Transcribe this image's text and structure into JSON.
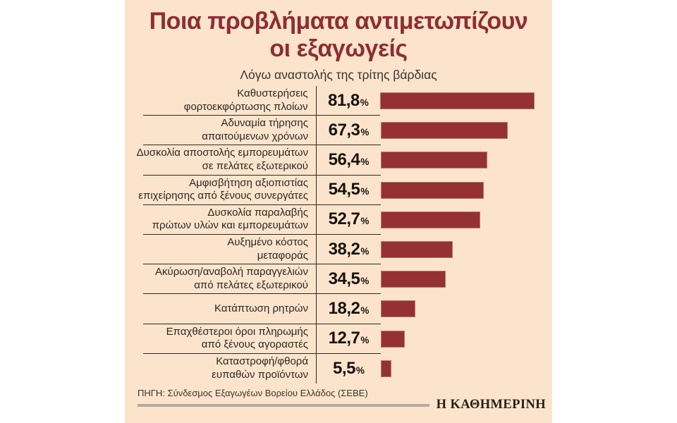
{
  "header": {
    "title_line1": "Ποια προβλήματα αντιμετωπίζουν",
    "title_line2": "οι εξαγωγείς",
    "subtitle": "Λόγω αναστολής της τρίτης βάρδιας"
  },
  "chart_data": {
    "type": "bar",
    "orientation": "horizontal",
    "title": "Ποια προβλήματα αντιμετωπίζουν οι εξαγωγείς",
    "subtitle": "Λόγω αναστολής της τρίτης βάρδιας",
    "unit": "%",
    "xlim": [
      0,
      90
    ],
    "legend": "none",
    "grid": "off",
    "categories": [
      "Καθυστερήσεις φορτοεκφόρτωσης πλοίων",
      "Αδυναμία τήρησης απαιτούμενων χρόνων",
      "Δυσκολία αποστολής εμπορευμάτων σε πελάτες εξωτερικού",
      "Αμφισβήτηση αξιοπιστίας επιχείρησης από ξένους συνεργάτες",
      "Δυσκολία παραλαβής πρώτων υλών και εμπορευμάτων",
      "Αυξημένο κόστος μεταφοράς",
      "Ακύρωση/αναβολή παραγγελιών από πελάτες εξωτερικού",
      "Κατάπτωση ρητρών",
      "Επαχθέστεροι όροι πληρωμής από ξένους αγοραστές",
      "Καταστροφή/φθορά ευπαθών προϊόντων"
    ],
    "category_lines": [
      [
        "Καθυστερήσεις",
        "φορτοεκφόρτωσης πλοίων"
      ],
      [
        "Αδυναμία τήρησης",
        "απαιτούμενων χρόνων"
      ],
      [
        "Δυσκολία αποστολής εμπορευμάτων",
        "σε πελάτες εξωτερικού"
      ],
      [
        "Αμφισβήτηση αξιοπιστίας",
        "επιχείρησης από ξένους συνεργάτες"
      ],
      [
        "Δυσκολία παραλαβής",
        "πρώτων υλών και εμπορευμάτων"
      ],
      [
        "Αυξημένο κόστος",
        "μεταφοράς"
      ],
      [
        "Ακύρωση/αναβολή παραγγελιών",
        "από πελάτες εξωτερικού"
      ],
      [
        "Κατάπτωση ρητρών"
      ],
      [
        "Επαχθέστεροι όροι πληρωμής",
        "από ξένους αγοραστές"
      ],
      [
        "Καταστροφή/φθορά",
        "ευπαθών προϊόντων"
      ]
    ],
    "values": [
      81.8,
      67.3,
      56.4,
      54.5,
      52.7,
      38.2,
      34.5,
      18.2,
      12.7,
      5.5
    ],
    "value_labels": [
      "81,8",
      "67,3",
      "56,4",
      "54,5",
      "52,7",
      "38,2",
      "34,5",
      "18,2",
      "12,7",
      "5,5"
    ],
    "bar_color": "#953134"
  },
  "footer": {
    "source": "ΠΗΓΗ: Σύνδεσμος Εξαγωγέων Βορείου Ελλάδος (ΣΕΒΕ)",
    "brand": "Η ΚΑΘΗΜΕΡΙΝΗ"
  },
  "colors": {
    "panel_background": "#fce4cc",
    "bar": "#953134",
    "title": "#8e2d34",
    "text": "#2b2724",
    "line": "#2e2822",
    "footer_rule": "#b5aba1"
  }
}
